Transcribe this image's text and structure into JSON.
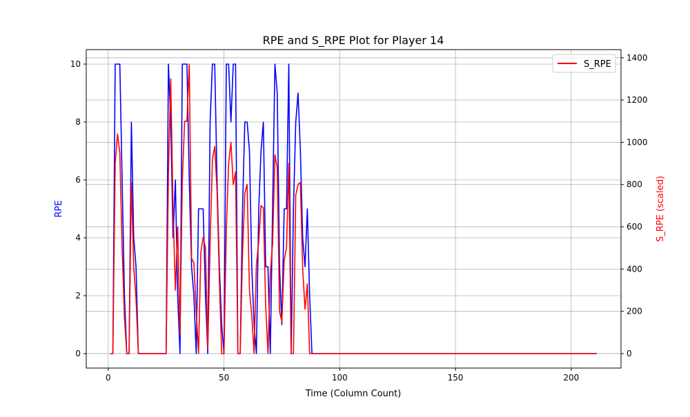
{
  "chart_data": {
    "type": "line",
    "title": "RPE and S_RPE Plot for Player 14",
    "xlabel": "Time (Column Count)",
    "ylabel": "RPE",
    "ylabel_right": "S_RPE (scaled)",
    "xlim": [
      -9.5,
      221.5
    ],
    "ylim": [
      -0.5,
      10.5
    ],
    "ylim_right": [
      -68.5,
      1438.5
    ],
    "x_ticks": [
      0,
      50,
      100,
      150,
      200
    ],
    "y_ticks": [
      0,
      2,
      4,
      6,
      8,
      10
    ],
    "y_ticks_right": [
      0,
      200,
      400,
      600,
      800,
      1000,
      1200,
      1400
    ],
    "grid": true,
    "legend": {
      "position": "top-right",
      "entries": [
        "S_RPE"
      ]
    },
    "series": [
      {
        "axis": "left",
        "color": "#0000ff",
        "points": [
          [
            1,
            0
          ],
          [
            2,
            0
          ],
          [
            3,
            10
          ],
          [
            4,
            10
          ],
          [
            5,
            10
          ],
          [
            6,
            6
          ],
          [
            7,
            2
          ],
          [
            8,
            0
          ],
          [
            9,
            0
          ],
          [
            10,
            8
          ],
          [
            11,
            4
          ],
          [
            12,
            3
          ],
          [
            13,
            0
          ],
          [
            14,
            0
          ],
          [
            20,
            0
          ],
          [
            25,
            0
          ],
          [
            26,
            10
          ],
          [
            27,
            8
          ],
          [
            28,
            4
          ],
          [
            29,
            6
          ],
          [
            30,
            2
          ],
          [
            31,
            0
          ],
          [
            32,
            10
          ],
          [
            33,
            10
          ],
          [
            34,
            10
          ],
          [
            35,
            6
          ],
          [
            36,
            3
          ],
          [
            37,
            2
          ],
          [
            38,
            0
          ],
          [
            39,
            5
          ],
          [
            40,
            5
          ],
          [
            41,
            5
          ],
          [
            42,
            2
          ],
          [
            43,
            0
          ],
          [
            44,
            8
          ],
          [
            45,
            10
          ],
          [
            46,
            10
          ],
          [
            47,
            6
          ],
          [
            48,
            3
          ],
          [
            49,
            1
          ],
          [
            50,
            0
          ],
          [
            51,
            10
          ],
          [
            52,
            10
          ],
          [
            53,
            8
          ],
          [
            54,
            10
          ],
          [
            55,
            10
          ],
          [
            56,
            0
          ],
          [
            57,
            0
          ],
          [
            58,
            5
          ],
          [
            59,
            8
          ],
          [
            60,
            8
          ],
          [
            61,
            7
          ],
          [
            62,
            3
          ],
          [
            63,
            1
          ],
          [
            64,
            0
          ],
          [
            65,
            5
          ],
          [
            66,
            7
          ],
          [
            67,
            8
          ],
          [
            68,
            3
          ],
          [
            69,
            3
          ],
          [
            70,
            0
          ],
          [
            71,
            5
          ],
          [
            72,
            10
          ],
          [
            73,
            9
          ],
          [
            74,
            3
          ],
          [
            75,
            1
          ],
          [
            76,
            5
          ],
          [
            77,
            5
          ],
          [
            78,
            10
          ],
          [
            79,
            0
          ],
          [
            80,
            5
          ],
          [
            81,
            8
          ],
          [
            82,
            9
          ],
          [
            83,
            7
          ],
          [
            84,
            4
          ],
          [
            85,
            3
          ],
          [
            86,
            5
          ],
          [
            87,
            2
          ],
          [
            88,
            0
          ],
          [
            90,
            0
          ],
          [
            100,
            0
          ],
          [
            150,
            0
          ],
          [
            200,
            0
          ],
          [
            211,
            0
          ]
        ]
      },
      {
        "name": "S_RPE",
        "axis": "right",
        "color": "#ff0000",
        "points": [
          [
            1,
            0
          ],
          [
            2,
            0
          ],
          [
            3,
            900
          ],
          [
            4,
            1040
          ],
          [
            5,
            950
          ],
          [
            6,
            500
          ],
          [
            7,
            170
          ],
          [
            8,
            0
          ],
          [
            9,
            0
          ],
          [
            10,
            810
          ],
          [
            11,
            410
          ],
          [
            12,
            260
          ],
          [
            13,
            0
          ],
          [
            14,
            0
          ],
          [
            20,
            0
          ],
          [
            25,
            0
          ],
          [
            26,
            850
          ],
          [
            27,
            1300
          ],
          [
            28,
            680
          ],
          [
            29,
            300
          ],
          [
            30,
            600
          ],
          [
            31,
            90
          ],
          [
            32,
            820
          ],
          [
            33,
            1100
          ],
          [
            34,
            1100
          ],
          [
            35,
            1370
          ],
          [
            36,
            450
          ],
          [
            37,
            430
          ],
          [
            38,
            200
          ],
          [
            39,
            0
          ],
          [
            40,
            480
          ],
          [
            41,
            550
          ],
          [
            42,
            500
          ],
          [
            43,
            20
          ],
          [
            44,
            520
          ],
          [
            45,
            920
          ],
          [
            46,
            980
          ],
          [
            47,
            770
          ],
          [
            48,
            350
          ],
          [
            49,
            0
          ],
          [
            50,
            0
          ],
          [
            51,
            580
          ],
          [
            52,
            900
          ],
          [
            53,
            1000
          ],
          [
            54,
            800
          ],
          [
            55,
            860
          ],
          [
            56,
            0
          ],
          [
            57,
            0
          ],
          [
            58,
            470
          ],
          [
            59,
            760
          ],
          [
            60,
            800
          ],
          [
            61,
            300
          ],
          [
            62,
            180
          ],
          [
            63,
            0
          ],
          [
            64,
            420
          ],
          [
            65,
            530
          ],
          [
            66,
            700
          ],
          [
            67,
            690
          ],
          [
            68,
            230
          ],
          [
            69,
            0
          ],
          [
            70,
            380
          ],
          [
            71,
            520
          ],
          [
            72,
            940
          ],
          [
            73,
            880
          ],
          [
            74,
            200
          ],
          [
            75,
            150
          ],
          [
            76,
            440
          ],
          [
            77,
            500
          ],
          [
            78,
            900
          ],
          [
            79,
            0
          ],
          [
            80,
            0
          ],
          [
            81,
            750
          ],
          [
            82,
            800
          ],
          [
            83,
            810
          ],
          [
            84,
            400
          ],
          [
            85,
            210
          ],
          [
            86,
            330
          ],
          [
            87,
            0
          ],
          [
            88,
            0
          ],
          [
            90,
            0
          ],
          [
            100,
            0
          ],
          [
            150,
            0
          ],
          [
            200,
            0
          ],
          [
            211,
            0
          ]
        ]
      }
    ]
  }
}
